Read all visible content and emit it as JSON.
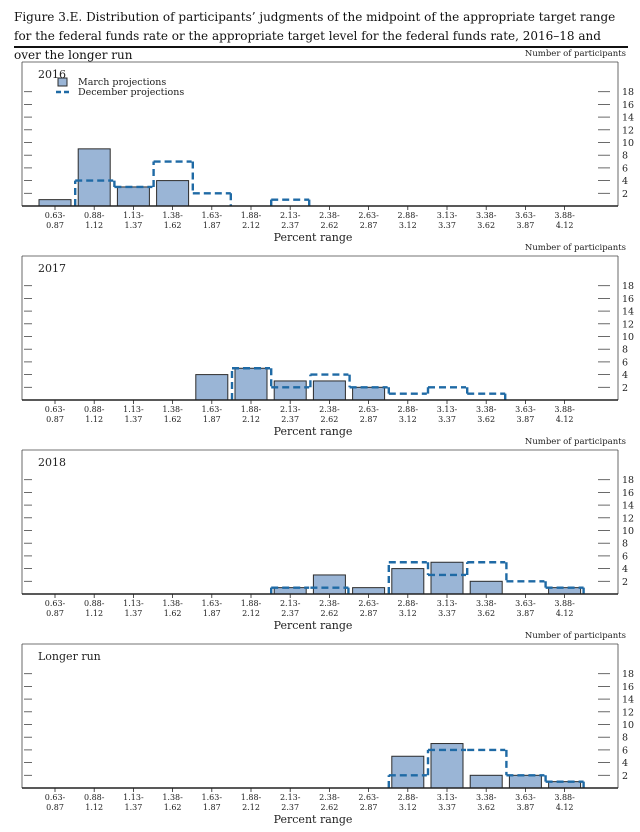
{
  "figure_title": "Figure 3.E. Distribution of participants’ judgments of the midpoint of the appropriate target range for the federal funds rate or the appropriate target level for the federal funds rate, 2016–18 and over the longer run",
  "chart_data": [
    {
      "type": "bar",
      "panel_label": "2016",
      "right_axis_title": "Number of participants",
      "xlabel": "Percent range",
      "categories": [
        "0.63-\n0.87",
        "0.88-\n1.12",
        "1.13-\n1.37",
        "1.38-\n1.62",
        "1.63-\n1.87",
        "1.88-\n2.12",
        "2.13-\n2.37",
        "2.38-\n2.62",
        "2.63-\n2.87",
        "2.88-\n3.12",
        "3.13-\n3.37",
        "3.38-\n3.62",
        "3.63-\n3.87",
        "3.88-\n4.12"
      ],
      "yticks": [
        2,
        4,
        6,
        8,
        10,
        12,
        14,
        16,
        18
      ],
      "ylim": [
        0,
        18
      ],
      "legend": [
        "March projections",
        "December projections"
      ],
      "series": [
        {
          "name": "March projections",
          "style": "bar",
          "values": [
            1,
            9,
            3,
            4,
            0,
            0,
            0,
            0,
            0,
            0,
            0,
            0,
            0,
            0
          ]
        },
        {
          "name": "December projections",
          "style": "dashed-step",
          "values": [
            0,
            4,
            3,
            7,
            2,
            0,
            1,
            0,
            0,
            0,
            0,
            0,
            0,
            0
          ]
        }
      ]
    },
    {
      "type": "bar",
      "panel_label": "2017",
      "right_axis_title": "Number of participants",
      "xlabel": "Percent range",
      "categories": [
        "0.63-\n0.87",
        "0.88-\n1.12",
        "1.13-\n1.37",
        "1.38-\n1.62",
        "1.63-\n1.87",
        "1.88-\n2.12",
        "2.13-\n2.37",
        "2.38-\n2.62",
        "2.63-\n2.87",
        "2.88-\n3.12",
        "3.13-\n3.37",
        "3.38-\n3.62",
        "3.63-\n3.87",
        "3.88-\n4.12"
      ],
      "yticks": [
        2,
        4,
        6,
        8,
        10,
        12,
        14,
        16,
        18
      ],
      "ylim": [
        0,
        18
      ],
      "series": [
        {
          "name": "March projections",
          "style": "bar",
          "values": [
            0,
            0,
            0,
            0,
            4,
            5,
            3,
            3,
            2,
            0,
            0,
            0,
            0,
            0
          ]
        },
        {
          "name": "December projections",
          "style": "dashed-step",
          "values": [
            0,
            0,
            0,
            0,
            0,
            5,
            2,
            4,
            2,
            1,
            2,
            1,
            0,
            0
          ]
        }
      ]
    },
    {
      "type": "bar",
      "panel_label": "2018",
      "right_axis_title": "Number of participants",
      "xlabel": "Percent range",
      "categories": [
        "0.63-\n0.87",
        "0.88-\n1.12",
        "1.13-\n1.37",
        "1.38-\n1.62",
        "1.63-\n1.87",
        "1.88-\n2.12",
        "2.13-\n2.37",
        "2.38-\n2.62",
        "2.63-\n2.87",
        "2.88-\n3.12",
        "3.13-\n3.37",
        "3.38-\n3.62",
        "3.63-\n3.87",
        "3.88-\n4.12"
      ],
      "yticks": [
        2,
        4,
        6,
        8,
        10,
        12,
        14,
        16,
        18
      ],
      "ylim": [
        0,
        18
      ],
      "series": [
        {
          "name": "March projections",
          "style": "bar",
          "values": [
            0,
            0,
            0,
            0,
            0,
            0,
            1,
            3,
            1,
            4,
            5,
            2,
            0,
            1
          ]
        },
        {
          "name": "December projections",
          "style": "dashed-step",
          "values": [
            0,
            0,
            0,
            0,
            0,
            0,
            1,
            1,
            0,
            5,
            3,
            5,
            2,
            1
          ]
        }
      ]
    },
    {
      "type": "bar",
      "panel_label": "Longer run",
      "right_axis_title": "Number of participants",
      "xlabel": "Percent range",
      "categories": [
        "0.63-\n0.87",
        "0.88-\n1.12",
        "1.13-\n1.37",
        "1.38-\n1.62",
        "1.63-\n1.87",
        "1.88-\n2.12",
        "2.13-\n2.37",
        "2.38-\n2.62",
        "2.63-\n2.87",
        "2.88-\n3.12",
        "3.13-\n3.37",
        "3.38-\n3.62",
        "3.63-\n3.87",
        "3.88-\n4.12"
      ],
      "yticks": [
        2,
        4,
        6,
        8,
        10,
        12,
        14,
        16,
        18
      ],
      "ylim": [
        0,
        18
      ],
      "series": [
        {
          "name": "March projections",
          "style": "bar",
          "values": [
            0,
            0,
            0,
            0,
            0,
            0,
            0,
            0,
            0,
            5,
            7,
            2,
            2,
            1
          ]
        },
        {
          "name": "December projections",
          "style": "dashed-step",
          "values": [
            0,
            0,
            0,
            0,
            0,
            0,
            0,
            0,
            0,
            2,
            6,
            6,
            2,
            1
          ]
        }
      ]
    }
  ],
  "colors": {
    "bar_fill": "#9ab5d6",
    "bar_stroke": "#2b2b2b",
    "dashed_line": "#1f6aa5",
    "axis": "#222222"
  }
}
